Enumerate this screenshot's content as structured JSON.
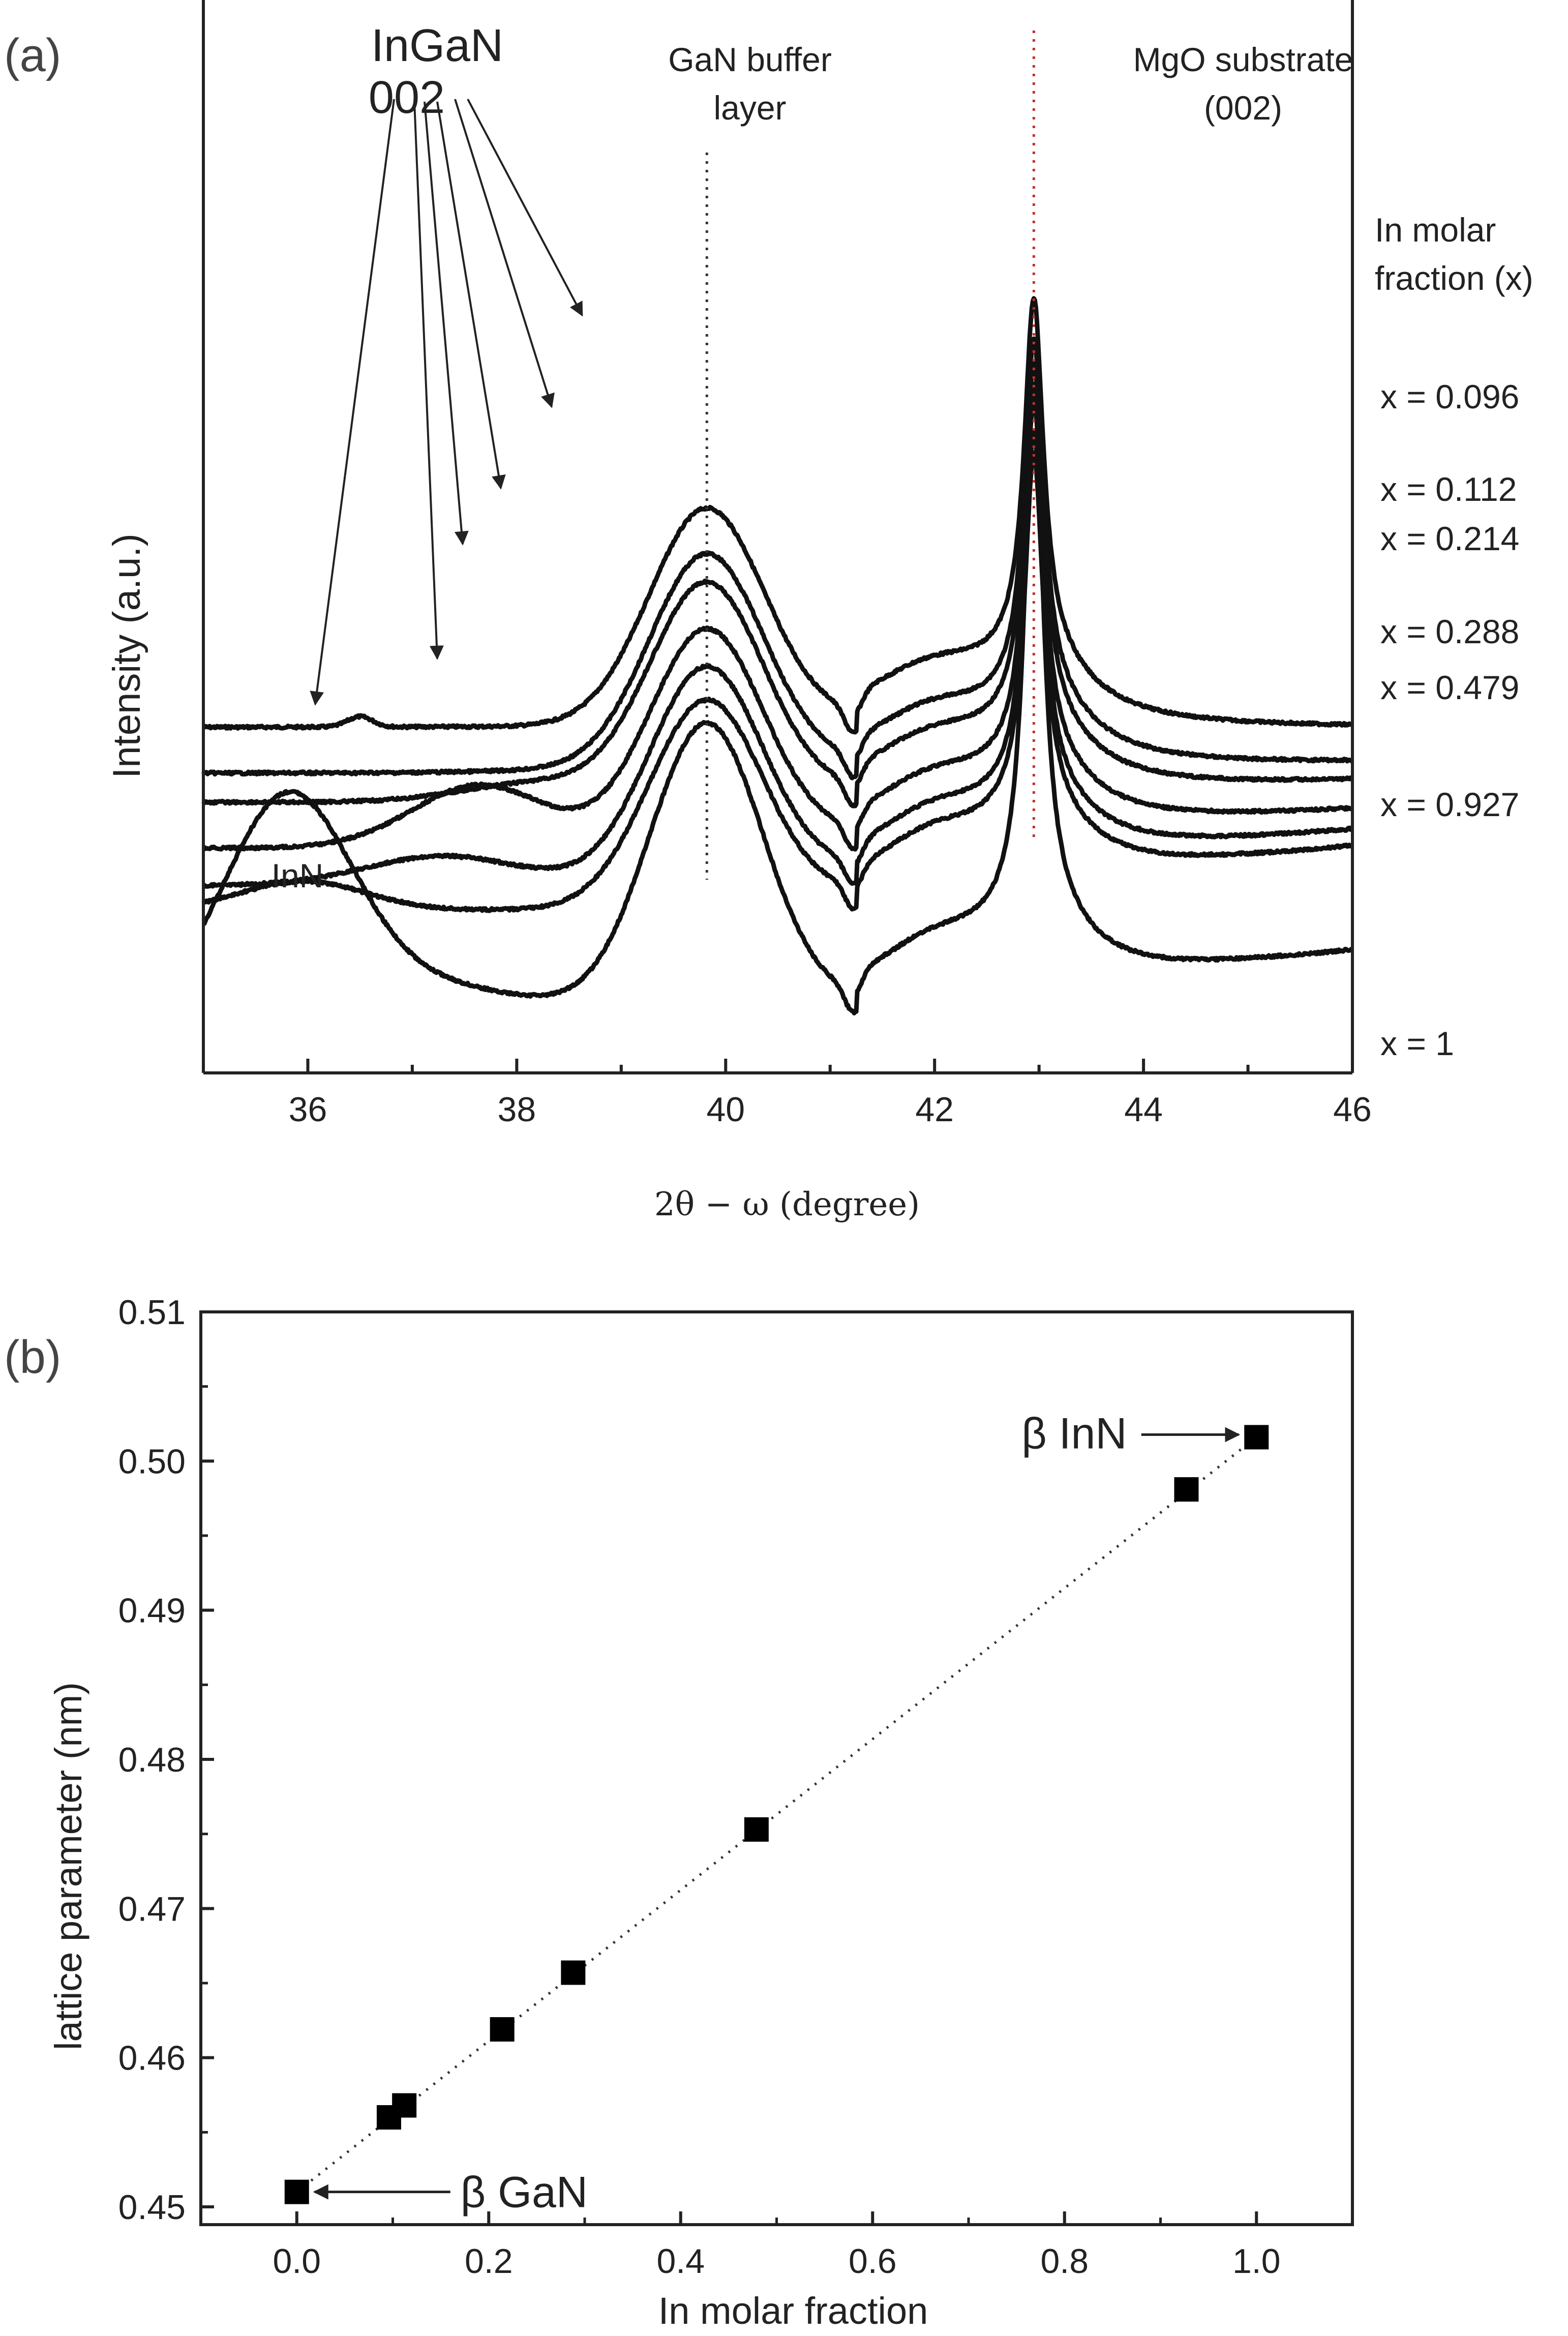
{
  "chart_data": [
    {
      "panel": "(a)",
      "type": "line",
      "xlabel": "2θ − ω (degree)",
      "ylabel": "Intensity (a.u.)",
      "xlim": [
        35,
        46
      ],
      "xticks": [
        36,
        38,
        40,
        42,
        44,
        46
      ],
      "reference_lines": [
        {
          "x": 39.82,
          "label": "GaN buffer layer"
        },
        {
          "x": 42.95,
          "label": "MgO substrate (002)"
        }
      ],
      "annotations": [
        {
          "text": "InGaN",
          "line2": "002"
        },
        {
          "text": "InN"
        },
        {
          "text": "In molar",
          "line2": "fraction (x)"
        }
      ],
      "series": [
        {
          "name": "x = 0.096",
          "x_fraction": 0.096,
          "offset": 7.0,
          "ingan_peak": 38.6,
          "ingan_width": 0.6,
          "ingan_height": 0.0,
          "bump": 36.5,
          "end_level": 0.0,
          "gan_height": 5.2,
          "mgo_height": 8.5
        },
        {
          "name": "x = 0.112",
          "x_fraction": 0.112,
          "offset": 5.9,
          "ingan_peak": 38.4,
          "ingan_width": 0.7,
          "ingan_height": 0.05,
          "end_level": 0.25,
          "gan_height": 5.2,
          "mgo_height": 8.5
        },
        {
          "name": "x = 0.214",
          "x_fraction": 0.214,
          "offset": 5.2,
          "ingan_peak": 38.2,
          "ingan_width": 0.7,
          "ingan_height": 0.45,
          "end_level": 0.5,
          "gan_height": 5.2,
          "mgo_height": 8.5
        },
        {
          "name": "x = 0.288",
          "x_fraction": 0.288,
          "offset": 4.1,
          "ingan_peak": 37.65,
          "ingan_width": 0.65,
          "ingan_height": 1.5,
          "end_level": 0.9,
          "gan_height": 5.2,
          "mgo_height": 8.5
        },
        {
          "name": "x = 0.479",
          "x_fraction": 0.479,
          "offset": 3.2,
          "ingan_peak": 37.3,
          "ingan_width": 0.75,
          "ingan_height": 0.7,
          "end_level": 1.3,
          "gan_height": 5.2,
          "mgo_height": 8.5
        },
        {
          "name": "x = 0.927",
          "x_fraction": 0.927,
          "offset": 2.6,
          "ingan_peak": 35.95,
          "ingan_width": 0.6,
          "ingan_height": 0.7,
          "end_level": 1.5,
          "gan_height": 5.0,
          "mgo_height": 8.5
        },
        {
          "name": "x = 1",
          "x_fraction": 1.0,
          "offset": 0.0,
          "ingan_peak": 35.8,
          "ingan_width": 0.6,
          "ingan_height": 4.8,
          "end_level": 1.6,
          "gan_height": 7.0,
          "mgo_height": 12.7
        }
      ]
    },
    {
      "panel": "(b)",
      "type": "scatter",
      "xlabel": "In molar fraction",
      "ylabel": "lattice parameter (nm)",
      "xlim": [
        -0.1,
        1.1
      ],
      "ylim": [
        0.45,
        0.51
      ],
      "xticks": [
        "0.0",
        "0.2",
        "0.4",
        "0.6",
        "0.8",
        "1.0"
      ],
      "yticks": [
        "0.45",
        "0.46",
        "0.47",
        "0.48",
        "0.49",
        "0.50",
        "0.51"
      ],
      "points": [
        {
          "x": 0.0,
          "y": 0.451
        },
        {
          "x": 0.096,
          "y": 0.456
        },
        {
          "x": 0.112,
          "y": 0.4568
        },
        {
          "x": 0.214,
          "y": 0.4619
        },
        {
          "x": 0.288,
          "y": 0.4657
        },
        {
          "x": 0.479,
          "y": 0.4753
        },
        {
          "x": 0.927,
          "y": 0.4981
        },
        {
          "x": 1.0,
          "y": 0.5016
        }
      ],
      "fit_line": {
        "x": [
          0.0,
          1.0
        ],
        "y": [
          0.451,
          0.5016
        ],
        "style": "dotted"
      },
      "annotations": [
        {
          "text": "β GaN",
          "x": 0.0,
          "y": 0.451
        },
        {
          "text": "β InN",
          "x": 1.0,
          "y": 0.5016
        }
      ]
    }
  ],
  "colors": {
    "trace": "#111111",
    "text": "#222222",
    "ref_line_red": "#c03030",
    "ref_line_black": "#333333"
  }
}
